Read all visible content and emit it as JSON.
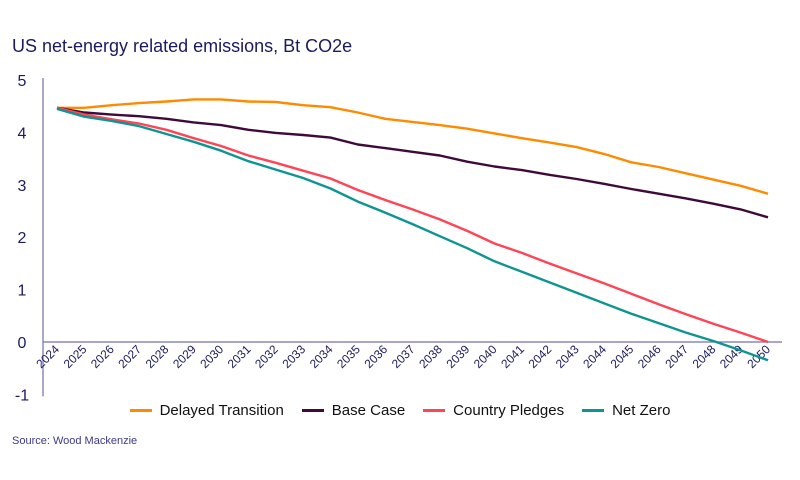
{
  "title": "US net-energy related emissions, Bt CO2e",
  "source": "Source: Wood Mackenzie",
  "chart_data": {
    "type": "line",
    "title": "US net-energy related emissions, Bt CO2e",
    "xlabel": "",
    "ylabel": "",
    "ylim": [
      -1,
      5
    ],
    "yticks": [
      -1,
      0,
      1,
      2,
      3,
      4,
      5
    ],
    "x": [
      2024,
      2025,
      2026,
      2027,
      2028,
      2029,
      2030,
      2031,
      2032,
      2033,
      2034,
      2035,
      2036,
      2037,
      2038,
      2039,
      2040,
      2041,
      2042,
      2043,
      2044,
      2045,
      2046,
      2047,
      2048,
      2049,
      2050
    ],
    "legend_position": "bottom",
    "grid": false,
    "series": [
      {
        "name": "Delayed Transition",
        "color": "#ff8a00",
        "values": [
          4.47,
          4.47,
          4.52,
          4.56,
          4.59,
          4.63,
          4.63,
          4.59,
          4.58,
          4.52,
          4.48,
          4.38,
          4.26,
          4.2,
          4.14,
          4.07,
          3.98,
          3.89,
          3.81,
          3.72,
          3.59,
          3.43,
          3.34,
          3.22,
          3.1,
          2.98,
          2.83
        ]
      },
      {
        "name": "Base Case",
        "color": "#3d0a3a",
        "values": [
          4.47,
          4.38,
          4.34,
          4.31,
          4.26,
          4.19,
          4.14,
          4.05,
          3.99,
          3.95,
          3.9,
          3.77,
          3.7,
          3.63,
          3.56,
          3.44,
          3.35,
          3.28,
          3.19,
          3.11,
          3.02,
          2.92,
          2.83,
          2.74,
          2.64,
          2.53,
          2.38
        ]
      },
      {
        "name": "Country Pledges",
        "color": "#ff4455",
        "values": [
          4.47,
          4.34,
          4.25,
          4.17,
          4.05,
          3.89,
          3.74,
          3.56,
          3.42,
          3.27,
          3.12,
          2.9,
          2.71,
          2.53,
          2.34,
          2.12,
          1.88,
          1.7,
          1.5,
          1.31,
          1.12,
          0.92,
          0.72,
          0.53,
          0.35,
          0.18,
          0.0
        ]
      },
      {
        "name": "Net Zero",
        "color": "#0e9590",
        "values": [
          4.45,
          4.3,
          4.22,
          4.12,
          3.97,
          3.82,
          3.65,
          3.45,
          3.29,
          3.13,
          2.93,
          2.68,
          2.47,
          2.25,
          2.02,
          1.79,
          1.54,
          1.34,
          1.14,
          0.94,
          0.74,
          0.54,
          0.36,
          0.18,
          0.02,
          -0.16,
          -0.35
        ]
      }
    ]
  }
}
